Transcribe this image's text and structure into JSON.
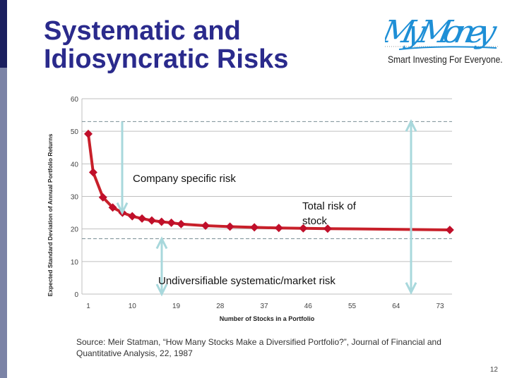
{
  "slide": {
    "title_line1": "Systematic and",
    "title_line2": "Idiosyncratic Risks",
    "logo_text": "My Money",
    "tagline": "Smart Investing For Everyone.",
    "source": "Source: Meir Statman, “How Many Stocks Make a Diversified Portfolio?”, Journal of Financial and Quantitative Analysis, 22, 1987",
    "page_number": "12",
    "colors": {
      "title": "#2a2a8c",
      "series": "#c8202a",
      "annotation_arrow": "#a8d8dc",
      "logo": "#1e8fd6"
    }
  },
  "chart_data": {
    "type": "line",
    "xlabel": "Number of Stocks in a Portfolio",
    "ylabel": "Expected Standard Deviation of Annual Portfolio Returns",
    "x_tick_labels": [
      "1",
      "10",
      "19",
      "28",
      "37",
      "46",
      "55",
      "64",
      "73"
    ],
    "y_tick_labels": [
      "0",
      "10",
      "20",
      "30",
      "40",
      "50",
      "60"
    ],
    "ylim": [
      0,
      60
    ],
    "xlim": [
      1,
      75
    ],
    "grid": true,
    "x": [
      1,
      2,
      4,
      6,
      8,
      10,
      12,
      14,
      16,
      18,
      20,
      25,
      30,
      35,
      40,
      45,
      50,
      75
    ],
    "values": [
      49.2,
      37.4,
      29.7,
      26.6,
      25.0,
      23.9,
      23.2,
      22.6,
      22.2,
      21.9,
      21.5,
      21.0,
      20.7,
      20.5,
      20.3,
      20.2,
      20.1,
      19.7
    ],
    "reference_lines": [
      53,
      17
    ],
    "annotations": {
      "company": "Company specific risk",
      "total": "Total risk of stock",
      "market": "Undiversifiable systematic/market risk"
    }
  }
}
